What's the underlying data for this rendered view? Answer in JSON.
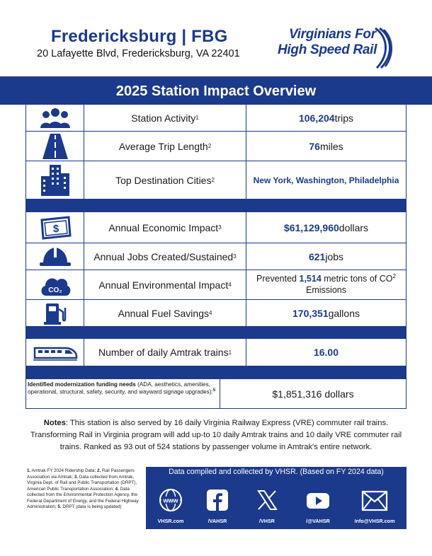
{
  "header": {
    "station_name": "Fredericksburg | FBG",
    "address": "20 Lafayette Blvd, Fredericksburg, VA 22401",
    "logo_line1": "Virginians For",
    "logo_line2": "High Speed Rail"
  },
  "banner": {
    "title": "2025 Station Impact Overview"
  },
  "metrics": {
    "station_activity": {
      "icon": "people-icon",
      "label": "Station Activity",
      "sup": "1",
      "value": "106,204",
      "unit": " trips"
    },
    "trip_length": {
      "icon": "road-icon",
      "label": "Average Trip Length",
      "sup": "2",
      "value": "76",
      "unit": " miles"
    },
    "destinations": {
      "icon": "buildings-icon",
      "label": "Top Destination Cities",
      "sup": "2",
      "value": "New York, Washington, Philadelphia"
    },
    "economic": {
      "icon": "dollar-bill-icon",
      "label": "Annual Economic Impact",
      "sup": "3",
      "value": "$61,129,960",
      "unit": " dollars"
    },
    "jobs": {
      "icon": "hard-hat-icon",
      "label": "Annual Jobs Created/Sustained",
      "sup": "3",
      "value": "621",
      "unit": " jobs"
    },
    "environment": {
      "icon": "co2-cloud-icon",
      "label": "Annual Environmental Impact",
      "sup": "4",
      "prefix": "Prevented ",
      "value": "1,514",
      "unit": " metric tons of  CO",
      "unit_sup": "2",
      "line2": "Emissions",
      "icon_text": "CO₂"
    },
    "fuel": {
      "icon": "fuel-pump-icon",
      "label": "Annual Fuel Savings",
      "sup": "4",
      "value": "170,351",
      "unit": " gallons"
    },
    "trains": {
      "icon": "train-icon",
      "label": "Number of daily Amtrak trains",
      "sup": "1",
      "value": "16.00"
    }
  },
  "funding": {
    "title": "Identified modernization funding needs",
    "detail": " (ADA, aesthetics, amenities, operational, structural, safety, security, and wayward signage upgrades):",
    "sup": "5",
    "value": "$1,851,316 dollars"
  },
  "notes": {
    "label": "Notes",
    "text": ": This station is also served by 16 daily Virginia Railway Express (VRE) commuter rail trains. Transforming Rail in Virginia program will add up-to 10 daily Amtrak trains and 10 daily VRE commuter rail trains. Ranked as 93 out of 524 stations by passenger volume in Amtrak's entire network."
  },
  "footnotes": {
    "n1": "1.",
    "t1": " Amtrak FY 2024 Ridership Data; ",
    "n2": "2.",
    "t2": " Rail Passengers Association via Amtrak; ",
    "n3": "3.",
    "t3": " Data collected from Amtrak, Virginia Dept. of Rail and Public Transportation (DRPT), American Public Transportation Association; ",
    "n4": "4.",
    "t4": " Data collected from the Environmental Protection Agency, the Federal Department of Energy, and the Federal Highway Administration; ",
    "n5": "5.",
    "t5": " DRPT (data is being updated)"
  },
  "footer": {
    "caption": "Data compiled and collected by VHSR. (Based on FY 2024 data)",
    "social": [
      {
        "icon": "globe-www-icon",
        "label": "VHSR.com",
        "icon_text": "www"
      },
      {
        "icon": "facebook-icon",
        "label": "/VAHSR"
      },
      {
        "icon": "x-icon",
        "label": "/VHSR"
      },
      {
        "icon": "youtube-icon",
        "label": "/@VAHSR"
      },
      {
        "icon": "email-icon",
        "label": "Info@VHSR.com"
      }
    ]
  },
  "colors": {
    "accent": "#1b3a8c",
    "background": "#ffffff",
    "text": "#1a1a1a"
  }
}
